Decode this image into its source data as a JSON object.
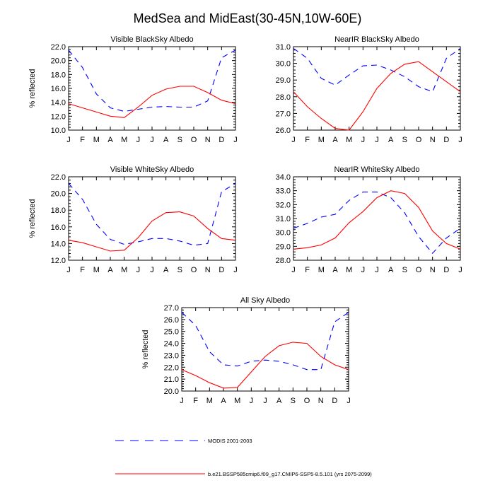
{
  "figure": {
    "title": "MedSea and MidEast(30-45N,10W-60E)"
  },
  "colors": {
    "model": "#ff0000",
    "obs": "#0000ff",
    "axis": "#000000"
  },
  "legend": {
    "items": [
      {
        "key": "obs",
        "label": "MODIS 2001-2003",
        "style": "dashed"
      },
      {
        "key": "model",
        "label": "b.e21.BSSP585cmip6.f09_g17.CMIP6-SSP5-8.5.101 (yrs 2075-2099)",
        "style": "solid"
      }
    ]
  },
  "chart_data": [
    {
      "type": "line",
      "title": "Visible BlackSky Albedo",
      "ylabel": "% reflected",
      "x": [
        "J",
        "F",
        "M",
        "A",
        "M",
        "J",
        "J",
        "A",
        "S",
        "O",
        "N",
        "D",
        "J"
      ],
      "ylim": [
        10.0,
        22.0
      ],
      "yticks": [
        "10.0",
        "12.0",
        "14.0",
        "16.0",
        "18.0",
        "20.0",
        "22.0"
      ],
      "series": [
        {
          "key": "obs",
          "values": [
            21.5,
            19.0,
            15.2,
            13.2,
            12.7,
            13.0,
            13.3,
            13.4,
            13.3,
            13.3,
            14.2,
            20.4,
            21.5
          ]
        },
        {
          "key": "model",
          "values": [
            13.8,
            13.2,
            12.6,
            12.0,
            11.8,
            13.3,
            15.0,
            15.9,
            16.3,
            16.3,
            15.4,
            14.3,
            13.8
          ]
        }
      ]
    },
    {
      "type": "line",
      "title": "NearIR BlackSky Albedo",
      "ylabel": "",
      "x": [
        "J",
        "F",
        "M",
        "A",
        "M",
        "J",
        "J",
        "A",
        "S",
        "O",
        "N",
        "D",
        "J"
      ],
      "ylim": [
        26.0,
        31.0
      ],
      "yticks": [
        "26.0",
        "27.0",
        "28.0",
        "29.0",
        "30.0",
        "31.0"
      ],
      "series": [
        {
          "key": "obs",
          "values": [
            30.9,
            30.3,
            29.1,
            28.7,
            29.3,
            29.85,
            29.9,
            29.6,
            29.2,
            28.6,
            28.3,
            30.3,
            30.9
          ]
        },
        {
          "key": "model",
          "values": [
            28.3,
            27.4,
            26.7,
            26.1,
            26.0,
            27.1,
            28.5,
            29.4,
            29.95,
            30.1,
            29.5,
            28.9,
            28.3
          ]
        }
      ]
    },
    {
      "type": "line",
      "title": "Visible WhiteSky Albedo",
      "ylabel": "% reflected",
      "x": [
        "J",
        "F",
        "M",
        "A",
        "M",
        "J",
        "J",
        "A",
        "S",
        "O",
        "N",
        "D",
        "J"
      ],
      "ylim": [
        12.0,
        22.0
      ],
      "yticks": [
        "12.0",
        "14.0",
        "16.0",
        "18.0",
        "20.0",
        "22.0"
      ],
      "series": [
        {
          "key": "obs",
          "values": [
            21.2,
            19.3,
            16.3,
            14.5,
            13.9,
            14.2,
            14.6,
            14.6,
            14.3,
            13.8,
            14.0,
            20.2,
            21.2
          ]
        },
        {
          "key": "model",
          "values": [
            14.4,
            14.1,
            13.6,
            13.1,
            13.2,
            14.7,
            16.7,
            17.7,
            17.8,
            17.3,
            15.8,
            14.6,
            14.4
          ]
        }
      ]
    },
    {
      "type": "line",
      "title": "NearIR WhiteSky Albedo",
      "ylabel": "",
      "x": [
        "J",
        "F",
        "M",
        "A",
        "M",
        "J",
        "J",
        "A",
        "S",
        "O",
        "N",
        "D",
        "J"
      ],
      "ylim": [
        28.0,
        34.0
      ],
      "yticks": [
        "28.0",
        "29.0",
        "30.0",
        "31.0",
        "32.0",
        "33.0",
        "34.0"
      ],
      "series": [
        {
          "key": "obs",
          "values": [
            30.3,
            30.65,
            31.1,
            31.3,
            32.3,
            32.9,
            32.9,
            32.5,
            31.4,
            29.7,
            28.5,
            29.6,
            30.3
          ]
        },
        {
          "key": "model",
          "values": [
            28.8,
            28.9,
            29.1,
            29.6,
            30.7,
            31.5,
            32.5,
            33.0,
            32.8,
            31.8,
            30.1,
            29.2,
            28.8
          ]
        }
      ]
    },
    {
      "type": "line",
      "title": "All Sky Albedo",
      "ylabel": "% reflected",
      "x": [
        "J",
        "F",
        "M",
        "A",
        "M",
        "J",
        "J",
        "A",
        "S",
        "O",
        "N",
        "D",
        "J"
      ],
      "ylim": [
        20.0,
        27.0
      ],
      "yticks": [
        "20.0",
        "21.0",
        "22.0",
        "23.0",
        "24.0",
        "25.0",
        "26.0",
        "27.0"
      ],
      "series": [
        {
          "key": "obs",
          "values": [
            26.6,
            25.5,
            23.3,
            22.2,
            22.1,
            22.5,
            22.6,
            22.5,
            22.2,
            21.8,
            21.8,
            25.8,
            26.6
          ]
        },
        {
          "key": "model",
          "values": [
            21.8,
            21.3,
            20.7,
            20.25,
            20.3,
            21.6,
            22.9,
            23.8,
            24.1,
            24.0,
            22.9,
            22.2,
            21.8
          ]
        }
      ]
    }
  ]
}
